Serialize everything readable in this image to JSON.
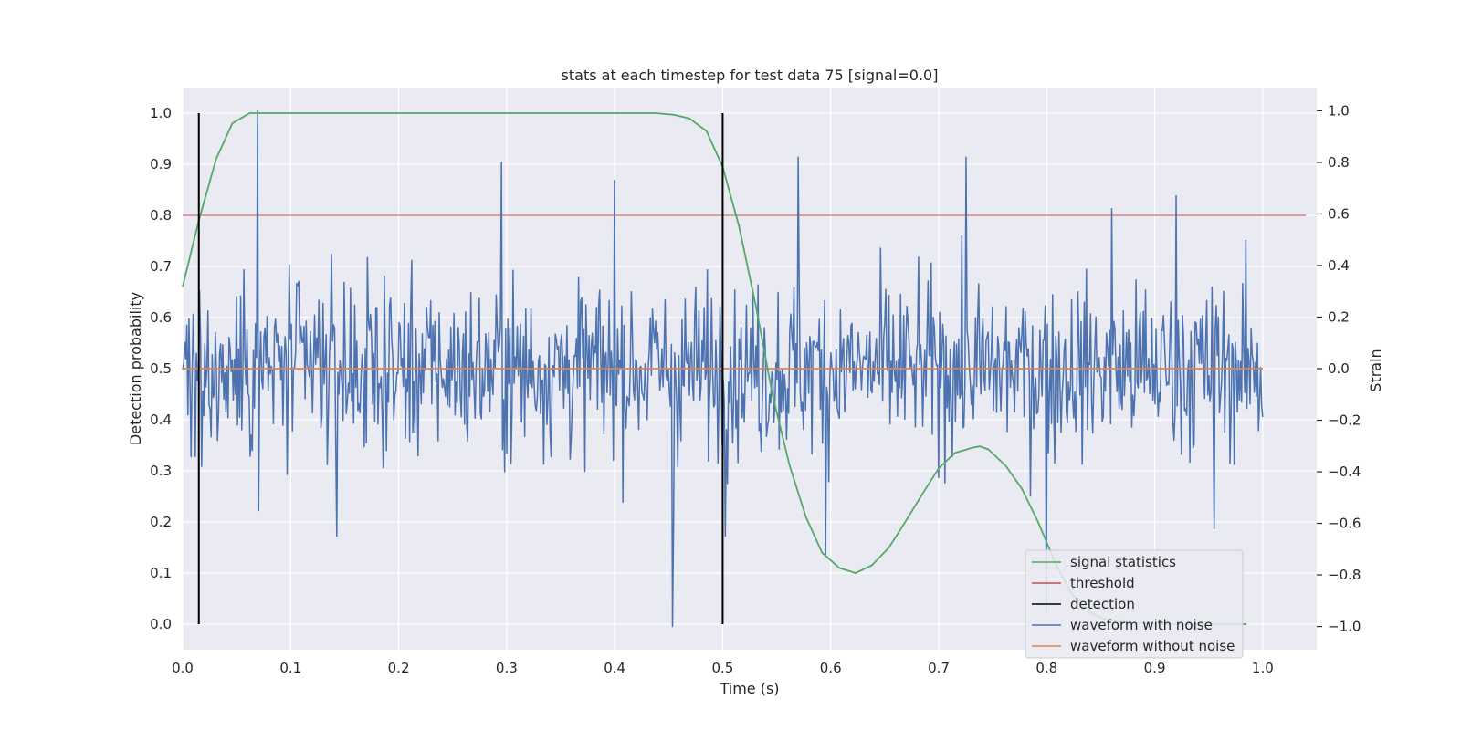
{
  "chart_data": {
    "type": "line",
    "title": "stats at each timestep for test data 75 [signal=0.0]",
    "xlabel": "Time (s)",
    "ylabel": "Detection probability",
    "y2label": "Strain",
    "xlim": [
      0.0,
      1.05
    ],
    "ylim": [
      -0.05,
      1.05
    ],
    "y2lim": [
      -1.09,
      1.09
    ],
    "x_ticks": [
      "0.0",
      "0.1",
      "0.2",
      "0.3",
      "0.4",
      "0.5",
      "0.6",
      "0.7",
      "0.8",
      "0.9",
      "1.0"
    ],
    "y_ticks": [
      "0.0",
      "0.1",
      "0.2",
      "0.3",
      "0.4",
      "0.5",
      "0.6",
      "0.7",
      "0.8",
      "0.9",
      "1.0"
    ],
    "y2_ticks": [
      "−1.0",
      "−0.8",
      "−0.6",
      "−0.4",
      "−0.2",
      "0.0",
      "0.2",
      "0.4",
      "0.6",
      "0.8",
      "1.0"
    ],
    "grid": true,
    "legend_position": "lower right",
    "legend": [
      "signal statistics",
      "threshold",
      "detection",
      "waveform with noise",
      "waveform without noise"
    ],
    "colors": {
      "signal_statistics": "#55a868",
      "threshold": "#c44e52",
      "detection": "#000000",
      "waveform_with_noise": "#4c72b0",
      "waveform_without_noise": "#dd8452",
      "plot_background": "#eaeaf2"
    },
    "signal_statistics": {
      "x": [
        0.0,
        0.015,
        0.031,
        0.046,
        0.062,
        0.077,
        0.092,
        0.108,
        0.2,
        0.3,
        0.4,
        0.438,
        0.454,
        0.469,
        0.485,
        0.5,
        0.515,
        0.531,
        0.546,
        0.562,
        0.577,
        0.592,
        0.608,
        0.623,
        0.638,
        0.654,
        0.669,
        0.685,
        0.7,
        0.715,
        0.731,
        0.738,
        0.746,
        0.762,
        0.777,
        0.792,
        0.808,
        0.823,
        0.838,
        0.854,
        0.869,
        0.885,
        0.9,
        0.915,
        0.931,
        0.946,
        0.962,
        0.977,
        0.985
      ],
      "y": [
        0.66,
        0.79,
        0.91,
        0.98,
        1.0,
        1.0,
        1.0,
        1.0,
        1.0,
        1.0,
        1.0,
        1.0,
        0.997,
        0.99,
        0.965,
        0.895,
        0.78,
        0.62,
        0.45,
        0.31,
        0.21,
        0.14,
        0.11,
        0.1,
        0.115,
        0.15,
        0.2,
        0.255,
        0.305,
        0.335,
        0.345,
        0.348,
        0.342,
        0.31,
        0.265,
        0.2,
        0.12,
        0.06,
        0.025,
        0.01,
        0.005,
        0.002,
        0.001,
        0.0,
        0.0,
        0.0,
        0.0,
        0.0,
        0.0
      ]
    },
    "threshold": {
      "y": 0.8,
      "x_range": [
        0.0,
        1.04
      ]
    },
    "detections": [
      0.015,
      0.5
    ],
    "waveform_without_noise": {
      "x_range": [
        0.0,
        1.0
      ],
      "y": 0.0
    },
    "waveform_with_noise": {
      "samples": 1024,
      "x_range": [
        0.0,
        1.0
      ],
      "y_range_approx": [
        -1.0,
        1.0
      ],
      "notable_points": [
        [
          0.069,
          1.0
        ],
        [
          0.07,
          -0.55
        ],
        [
          0.143,
          -0.65
        ],
        [
          0.295,
          0.8
        ],
        [
          0.4,
          0.73
        ],
        [
          0.454,
          -1.0
        ],
        [
          0.455,
          -0.6
        ],
        [
          0.502,
          -0.65
        ],
        [
          0.57,
          0.82
        ],
        [
          0.595,
          -0.72
        ],
        [
          0.725,
          0.82
        ],
        [
          0.8,
          -0.95
        ],
        [
          0.86,
          0.62
        ],
        [
          0.92,
          0.67
        ],
        [
          0.955,
          -0.62
        ]
      ]
    }
  }
}
